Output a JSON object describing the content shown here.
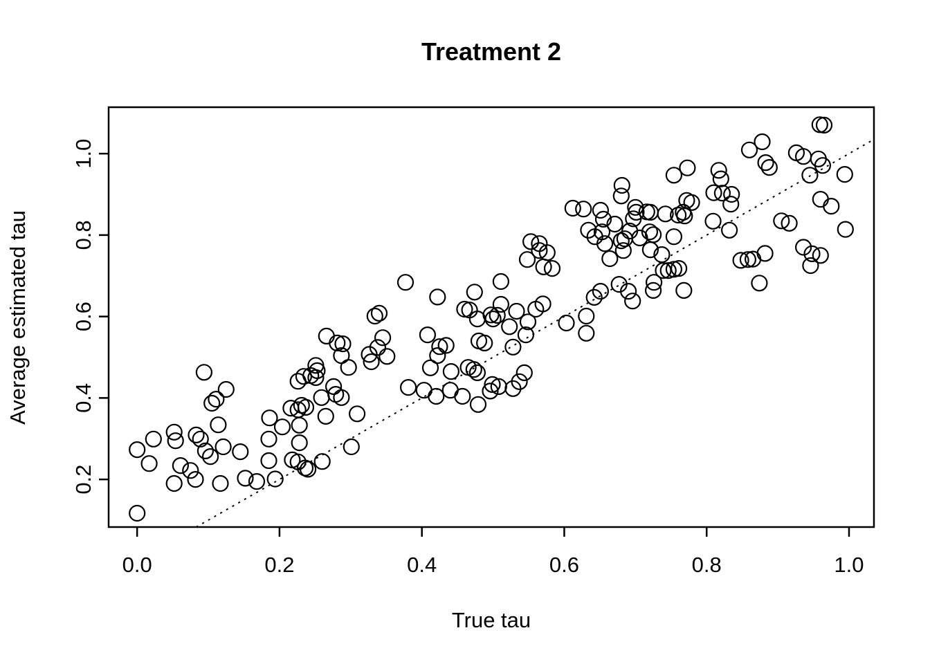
{
  "figure": {
    "background_color": "#ffffff",
    "foreground_color": "#000000"
  },
  "chart_data": {
    "type": "scatter",
    "title": "Treatment 2",
    "xlabel": "True tau",
    "ylabel": "Average estimated tau",
    "xlim": [
      -0.04,
      1.035
    ],
    "ylim": [
      0.083,
      1.114
    ],
    "x_ticks": [
      0.0,
      0.2,
      0.4,
      0.6,
      0.8,
      1.0
    ],
    "x_tick_labels": [
      "0.0",
      "0.2",
      "0.4",
      "0.6",
      "0.8",
      "1.0"
    ],
    "y_ticks": [
      0.2,
      0.4,
      0.6,
      0.8,
      1.0
    ],
    "y_tick_labels": [
      "0.2",
      "0.4",
      "0.6",
      "0.8",
      "1.0"
    ],
    "grid": false,
    "legend": null,
    "marker": "open-circle",
    "marker_color": "#000000",
    "reference_line": {
      "type": "identity",
      "intercept": 0,
      "slope": 1,
      "style": "dotted"
    },
    "points": [
      [
        0.959,
        1.071
      ],
      [
        0.965,
        1.07
      ],
      [
        0.878,
        1.029
      ],
      [
        0.86,
        1.009
      ],
      [
        0.926,
        1.002
      ],
      [
        0.936,
        0.993
      ],
      [
        0.957,
        0.987
      ],
      [
        0.963,
        0.971
      ],
      [
        0.883,
        0.978
      ],
      [
        0.888,
        0.966
      ],
      [
        0.945,
        0.947
      ],
      [
        0.773,
        0.965
      ],
      [
        0.817,
        0.959
      ],
      [
        0.82,
        0.938
      ],
      [
        0.994,
        0.949
      ],
      [
        0.754,
        0.947
      ],
      [
        0.81,
        0.904
      ],
      [
        0.822,
        0.903
      ],
      [
        0.835,
        0.9
      ],
      [
        0.834,
        0.876
      ],
      [
        0.772,
        0.885
      ],
      [
        0.779,
        0.88
      ],
      [
        0.769,
        0.847
      ],
      [
        0.809,
        0.834
      ],
      [
        0.832,
        0.812
      ],
      [
        0.96,
        0.888
      ],
      [
        0.975,
        0.871
      ],
      [
        0.905,
        0.835
      ],
      [
        0.916,
        0.829
      ],
      [
        0.995,
        0.814
      ],
      [
        0.936,
        0.77
      ],
      [
        0.948,
        0.754
      ],
      [
        0.96,
        0.75
      ],
      [
        0.946,
        0.725
      ],
      [
        0.882,
        0.755
      ],
      [
        0.874,
        0.682
      ],
      [
        0.848,
        0.738
      ],
      [
        0.858,
        0.74
      ],
      [
        0.865,
        0.741
      ],
      [
        0.681,
        0.922
      ],
      [
        0.68,
        0.896
      ],
      [
        0.612,
        0.866
      ],
      [
        0.627,
        0.864
      ],
      [
        0.651,
        0.861
      ],
      [
        0.655,
        0.839
      ],
      [
        0.7,
        0.868
      ],
      [
        0.701,
        0.856
      ],
      [
        0.697,
        0.84
      ],
      [
        0.716,
        0.857
      ],
      [
        0.721,
        0.856
      ],
      [
        0.742,
        0.852
      ],
      [
        0.76,
        0.849
      ],
      [
        0.767,
        0.856
      ],
      [
        0.671,
        0.827
      ],
      [
        0.634,
        0.812
      ],
      [
        0.643,
        0.796
      ],
      [
        0.653,
        0.808
      ],
      [
        0.692,
        0.81
      ],
      [
        0.685,
        0.791
      ],
      [
        0.68,
        0.786
      ],
      [
        0.706,
        0.793
      ],
      [
        0.72,
        0.808
      ],
      [
        0.725,
        0.801
      ],
      [
        0.754,
        0.796
      ],
      [
        0.553,
        0.784
      ],
      [
        0.565,
        0.779
      ],
      [
        0.657,
        0.779
      ],
      [
        0.548,
        0.74
      ],
      [
        0.565,
        0.762
      ],
      [
        0.576,
        0.757
      ],
      [
        0.571,
        0.722
      ],
      [
        0.583,
        0.718
      ],
      [
        0.664,
        0.742
      ],
      [
        0.683,
        0.762
      ],
      [
        0.721,
        0.764
      ],
      [
        0.737,
        0.752
      ],
      [
        0.726,
        0.684
      ],
      [
        0.725,
        0.664
      ],
      [
        0.739,
        0.713
      ],
      [
        0.746,
        0.713
      ],
      [
        0.754,
        0.716
      ],
      [
        0.761,
        0.718
      ],
      [
        0.768,
        0.664
      ],
      [
        0.677,
        0.679
      ],
      [
        0.69,
        0.662
      ],
      [
        0.696,
        0.638
      ],
      [
        0.642,
        0.647
      ],
      [
        0.651,
        0.662
      ],
      [
        0.631,
        0.601
      ],
      [
        0.631,
        0.559
      ],
      [
        0.603,
        0.584
      ],
      [
        0.511,
        0.686
      ],
      [
        0.511,
        0.63
      ],
      [
        0.506,
        0.603
      ],
      [
        0.5,
        0.594
      ],
      [
        0.533,
        0.613
      ],
      [
        0.523,
        0.575
      ],
      [
        0.549,
        0.587
      ],
      [
        0.546,
        0.555
      ],
      [
        0.56,
        0.618
      ],
      [
        0.57,
        0.631
      ],
      [
        0.528,
        0.525
      ],
      [
        0.544,
        0.462
      ],
      [
        0.537,
        0.44
      ],
      [
        0.508,
        0.428
      ],
      [
        0.499,
        0.433
      ],
      [
        0.528,
        0.423
      ],
      [
        0.377,
        0.684
      ],
      [
        0.422,
        0.648
      ],
      [
        0.474,
        0.66
      ],
      [
        0.46,
        0.618
      ],
      [
        0.467,
        0.616
      ],
      [
        0.478,
        0.594
      ],
      [
        0.497,
        0.604
      ],
      [
        0.408,
        0.555
      ],
      [
        0.422,
        0.504
      ],
      [
        0.425,
        0.526
      ],
      [
        0.434,
        0.529
      ],
      [
        0.412,
        0.474
      ],
      [
        0.441,
        0.465
      ],
      [
        0.465,
        0.475
      ],
      [
        0.473,
        0.47
      ],
      [
        0.478,
        0.462
      ],
      [
        0.48,
        0.54
      ],
      [
        0.488,
        0.535
      ],
      [
        0.381,
        0.426
      ],
      [
        0.403,
        0.419
      ],
      [
        0.44,
        0.419
      ],
      [
        0.42,
        0.404
      ],
      [
        0.457,
        0.404
      ],
      [
        0.479,
        0.384
      ],
      [
        0.496,
        0.417
      ],
      [
        0.334,
        0.601
      ],
      [
        0.34,
        0.608
      ],
      [
        0.266,
        0.552
      ],
      [
        0.281,
        0.535
      ],
      [
        0.289,
        0.533
      ],
      [
        0.287,
        0.504
      ],
      [
        0.297,
        0.475
      ],
      [
        0.345,
        0.548
      ],
      [
        0.338,
        0.524
      ],
      [
        0.326,
        0.507
      ],
      [
        0.329,
        0.489
      ],
      [
        0.351,
        0.502
      ],
      [
        0.251,
        0.48
      ],
      [
        0.253,
        0.467
      ],
      [
        0.244,
        0.455
      ],
      [
        0.251,
        0.45
      ],
      [
        0.234,
        0.453
      ],
      [
        0.226,
        0.441
      ],
      [
        0.276,
        0.428
      ],
      [
        0.259,
        0.401
      ],
      [
        0.279,
        0.409
      ],
      [
        0.287,
        0.401
      ],
      [
        0.231,
        0.382
      ],
      [
        0.237,
        0.377
      ],
      [
        0.265,
        0.355
      ],
      [
        0.309,
        0.361
      ],
      [
        0.228,
        0.333
      ],
      [
        0.228,
        0.29
      ],
      [
        0.301,
        0.28
      ],
      [
        0.26,
        0.244
      ],
      [
        0.236,
        0.228
      ],
      [
        0.24,
        0.225
      ],
      [
        0.094,
        0.463
      ],
      [
        0.105,
        0.387
      ],
      [
        0.111,
        0.397
      ],
      [
        0.125,
        0.421
      ],
      [
        0.114,
        0.334
      ],
      [
        0.052,
        0.316
      ],
      [
        0.023,
        0.299
      ],
      [
        0.0,
        0.273
      ],
      [
        0.054,
        0.295
      ],
      [
        0.083,
        0.309
      ],
      [
        0.089,
        0.299
      ],
      [
        0.096,
        0.27
      ],
      [
        0.103,
        0.256
      ],
      [
        0.121,
        0.28
      ],
      [
        0.145,
        0.268
      ],
      [
        0.017,
        0.239
      ],
      [
        0.061,
        0.234
      ],
      [
        0.075,
        0.222
      ],
      [
        0.082,
        0.2
      ],
      [
        0.052,
        0.19
      ],
      [
        0.117,
        0.19
      ],
      [
        0.152,
        0.203
      ],
      [
        0.168,
        0.195
      ],
      [
        0.194,
        0.201
      ],
      [
        0.0,
        0.117
      ],
      [
        0.186,
        0.351
      ],
      [
        0.204,
        0.329
      ],
      [
        0.216,
        0.375
      ],
      [
        0.226,
        0.371
      ],
      [
        0.185,
        0.299
      ],
      [
        0.185,
        0.246
      ],
      [
        0.218,
        0.248
      ],
      [
        0.226,
        0.243
      ]
    ]
  }
}
